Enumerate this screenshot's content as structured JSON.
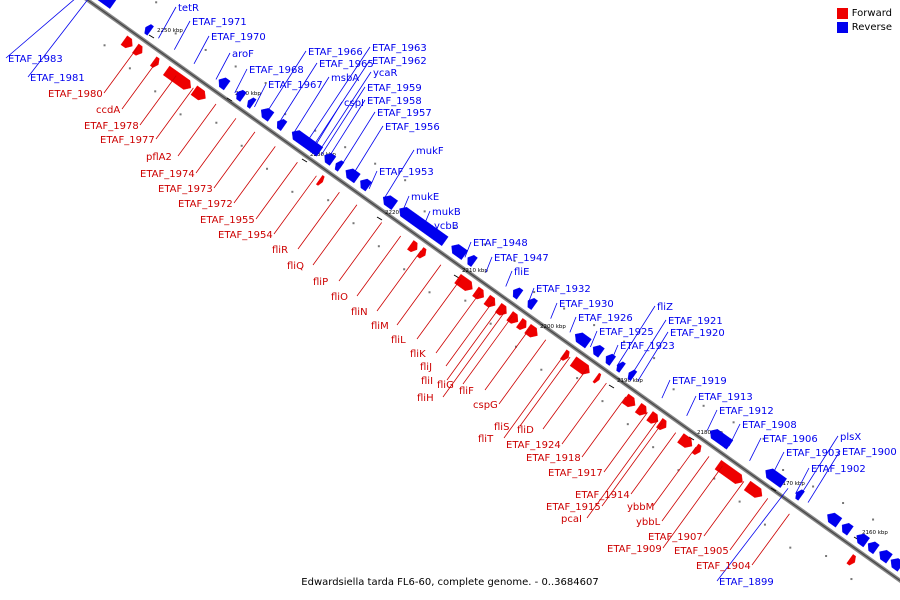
{
  "legend": {
    "forward_label": "Forward",
    "reverse_label": "Reverse",
    "forward_color": "#ee0000",
    "reverse_color": "#0000ee"
  },
  "caption": "Edwardsiella tarda FL6-60, complete genome. - 0..3684607",
  "ticks": [
    "2250 kbp",
    "2240 kbp",
    "2230 kbp",
    "2220 kbp",
    "2210 kbp",
    "2200 kbp",
    "2190 kbp",
    "2180 kbp",
    "2170 kbp",
    "2160 kbp"
  ],
  "labels": {
    "reverse": [
      "tetR",
      "ETAF_1971",
      "ETAF_1970",
      "aroF",
      "ETAF_1983",
      "ETAF_1981",
      "ETAF_1968",
      "ETAF_1967",
      "ETAF_1966",
      "ETAF_1965",
      "msbA",
      "ETAF_1963",
      "ETAF_1962",
      "ycaR",
      "cspI",
      "ETAF_1959",
      "ETAF_1958",
      "ETAF_1957",
      "ETAF_1956",
      "mukF",
      "ETAF_1953",
      "mukE",
      "mukB",
      "ycbB",
      "ETAF_1948",
      "ETAF_1947",
      "fliE",
      "ETAF_1932",
      "ETAF_1930",
      "ETAF_1926",
      "fliZ",
      "ETAF_1925",
      "ETAF_1921",
      "ETAF_1920",
      "ETAF_1923",
      "ETAF_1919",
      "ETAF_1913",
      "ETAF_1912",
      "ETAF_1908",
      "ETAF_1906",
      "plsX",
      "ETAF_1903",
      "ETAF_1900",
      "ETAF_1902",
      "ETAF_1899"
    ],
    "forward": [
      "ETAF_1980",
      "ccdA",
      "ETAF_1978",
      "ETAF_1977",
      "pflA2",
      "ETAF_1974",
      "ETAF_1973",
      "ETAF_1972",
      "ETAF_1955",
      "ETAF_1954",
      "fliR",
      "fliQ",
      "fliP",
      "fliO",
      "fliN",
      "fliM",
      "fliL",
      "fliK",
      "fliJ",
      "fliI",
      "fliG",
      "fliH",
      "fliF",
      "cspG",
      "fliS",
      "fliD",
      "fliT",
      "ETAF_1924",
      "ETAF_1918",
      "ETAF_1917",
      "ETAF_1914",
      "ETAF_1915",
      "pcaI",
      "ybbM",
      "ybbL",
      "ETAF_1907",
      "ETAF_1909",
      "ETAF_1905",
      "ETAF_1904"
    ]
  }
}
